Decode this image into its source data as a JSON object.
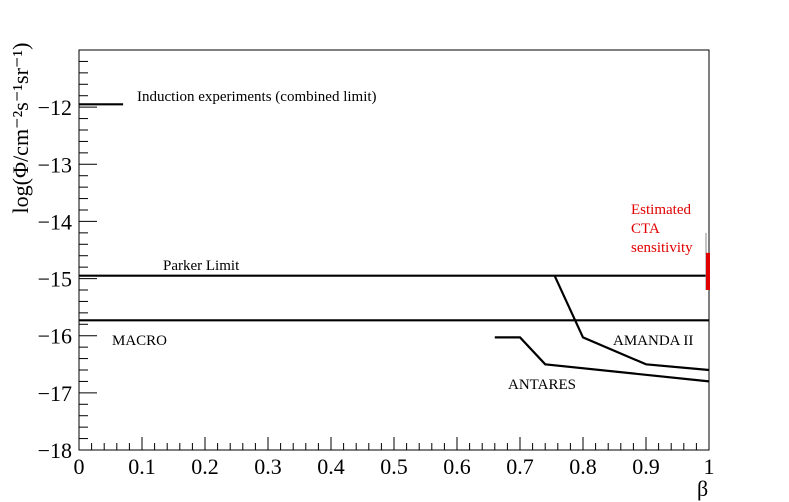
{
  "chart_data": {
    "type": "line",
    "xlabel": "β",
    "ylabel": "log(Φ/cm⁻²s⁻¹sr⁻¹)",
    "xlim": [
      0,
      1
    ],
    "ylim": [
      -18,
      -11
    ],
    "x_ticks": [
      "0",
      "0.1",
      "0.2",
      "0.3",
      "0.4",
      "0.5",
      "0.6",
      "0.7",
      "0.8",
      "0.9",
      "1"
    ],
    "y_ticks": [
      "−18",
      "−17",
      "−16",
      "−15",
      "−14",
      "−13",
      "−12"
    ],
    "grid": false,
    "series": [
      {
        "name": "Induction experiments (combined limit)",
        "x": [
          0,
          0.07
        ],
        "y": [
          -11.95,
          -11.95
        ]
      },
      {
        "name": "Parker Limit",
        "x": [
          0,
          1
        ],
        "y": [
          -14.95,
          -14.95
        ]
      },
      {
        "name": "MACRO",
        "x": [
          0,
          1
        ],
        "y": [
          -15.73,
          -15.73
        ]
      },
      {
        "name": "AMANDA II",
        "x": [
          0.755,
          0.8,
          0.9,
          1.0
        ],
        "y": [
          -14.95,
          -16.03,
          -16.5,
          -16.6
        ]
      },
      {
        "name": "ANTARES",
        "x": [
          0.66,
          0.7,
          0.74,
          1.0
        ],
        "y": [
          -16.03,
          -16.03,
          -16.5,
          -16.8
        ]
      }
    ],
    "cta": {
      "label_lines": [
        "Estimated",
        "CTA",
        "sensitivity"
      ],
      "x": 1.0,
      "y_range": [
        -15.2,
        -14.55
      ],
      "line_top": -14.2,
      "color": "#e00000"
    }
  }
}
